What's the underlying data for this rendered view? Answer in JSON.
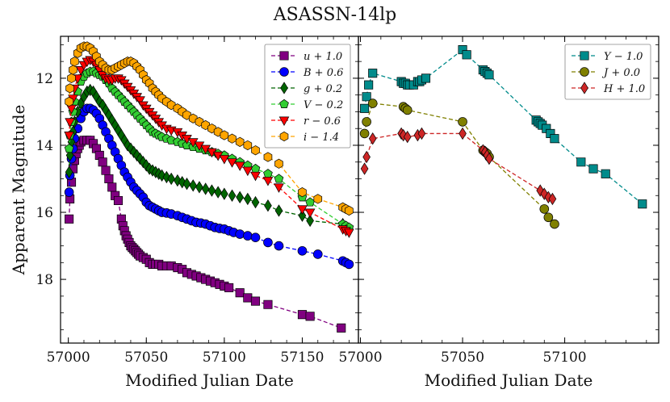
{
  "chart_data": {
    "type": "scatter",
    "title": "ASASSN-14lp",
    "ylabel": "Apparent Magnitude",
    "y_inverted": true,
    "ylim": [
      19.9,
      10.75
    ],
    "yticks": [
      12,
      14,
      16,
      18
    ],
    "panels": [
      {
        "name": "left",
        "xlabel": "Modified Julian Date",
        "xlim": [
          56995,
          57186
        ],
        "xticks": [
          57000,
          57050,
          57100,
          57150
        ],
        "legend_position": "top-right",
        "series": [
          {
            "name": "u+1.0",
            "label": "u + 1.0",
            "color": "#800080",
            "marker": "square",
            "x": [
              57000.5,
              57001,
              57002,
              57003,
              57004,
              57005,
              57006,
              57007,
              57008,
              57010,
              57012,
              57014,
              57016,
              57018,
              57020,
              57022,
              57024,
              57026,
              57028,
              57030,
              57032,
              57034,
              57035,
              57036,
              57037,
              57038,
              57039,
              57040,
              57041,
              57042,
              57043,
              57044,
              57045,
              57046,
              57048,
              57050,
              57052,
              57054,
              57056,
              57058,
              57060,
              57063,
              57066,
              57070,
              57073,
              57076,
              57079,
              57082,
              57085,
              57088,
              57091,
              57094,
              57097,
              57100,
              57103,
              57110,
              57115,
              57120,
              57128,
              57150,
              57155,
              57175
            ],
            "y": [
              16.2,
              15.6,
              15.1,
              14.7,
              14.45,
              14.25,
              14.1,
              14.0,
              13.9,
              13.85,
              13.85,
              13.85,
              13.95,
              14.1,
              14.3,
              14.5,
              14.75,
              15.0,
              15.25,
              15.5,
              15.65,
              16.2,
              16.4,
              16.55,
              16.7,
              16.8,
              16.9,
              17.0,
              17.05,
              17.1,
              17.15,
              17.2,
              17.25,
              17.3,
              17.35,
              17.4,
              17.5,
              17.55,
              17.55,
              17.55,
              17.6,
              17.6,
              17.6,
              17.65,
              17.7,
              17.8,
              17.85,
              17.9,
              17.95,
              18.0,
              18.05,
              18.1,
              18.15,
              18.2,
              18.25,
              18.4,
              18.55,
              18.65,
              18.75,
              19.05,
              19.1,
              19.45
            ]
          },
          {
            "name": "B+0.6",
            "label": "B + 0.6",
            "color": "#0000ff",
            "marker": "circle",
            "x": [
              57000.5,
              57001,
              57002,
              57003,
              57004,
              57006,
              57008,
              57010,
              57012,
              57014,
              57016,
              57018,
              57020,
              57022,
              57024,
              57026,
              57028,
              57030,
              57032,
              57034,
              57036,
              57038,
              57040,
              57042,
              57044,
              57046,
              57048,
              57050,
              57052,
              57054,
              57056,
              57058,
              57060,
              57063,
              57066,
              57070,
              57073,
              57076,
              57079,
              57082,
              57085,
              57088,
              57091,
              57094,
              57097,
              57100,
              57103,
              57106,
              57110,
              57115,
              57120,
              57128,
              57135,
              57150,
              57160,
              57176,
              57178,
              57180
            ],
            "y": [
              15.4,
              14.9,
              14.4,
              14.1,
              13.8,
              13.5,
              13.2,
              13.0,
              12.9,
              12.9,
              12.95,
              13.05,
              13.2,
              13.4,
              13.6,
              13.8,
              14.0,
              14.2,
              14.4,
              14.6,
              14.8,
              14.95,
              15.1,
              15.25,
              15.35,
              15.45,
              15.55,
              15.7,
              15.8,
              15.85,
              15.9,
              15.95,
              16.0,
              16.02,
              16.05,
              16.1,
              16.15,
              16.2,
              16.25,
              16.3,
              16.32,
              16.35,
              16.4,
              16.45,
              16.48,
              16.5,
              16.55,
              16.6,
              16.65,
              16.7,
              16.75,
              16.9,
              17.0,
              17.15,
              17.25,
              17.45,
              17.5,
              17.55
            ]
          },
          {
            "name": "g+0.2",
            "label": "g + 0.2",
            "color": "#006400",
            "marker": "diamond",
            "x": [
              57000.5,
              57001,
              57002,
              57003,
              57004,
              57006,
              57008,
              57010,
              57012,
              57014,
              57016,
              57018,
              57020,
              57022,
              57024,
              57026,
              57028,
              57030,
              57032,
              57034,
              57036,
              57038,
              57040,
              57042,
              57044,
              57046,
              57048,
              57050,
              57052,
              57054,
              57056,
              57058,
              57060,
              57063,
              57066,
              57070,
              57073,
              57076,
              57080,
              57084,
              57088,
              57092,
              57096,
              57100,
              57105,
              57110,
              57115,
              57120,
              57128,
              57135,
              57150,
              57155,
              57176,
              57178,
              57180
            ],
            "y": [
              14.8,
              14.3,
              13.9,
              13.6,
              13.3,
              13.0,
              12.75,
              12.55,
              12.4,
              12.35,
              12.4,
              12.55,
              12.7,
              12.8,
              12.95,
              13.1,
              13.25,
              13.4,
              13.55,
              13.7,
              13.85,
              14.0,
              14.1,
              14.2,
              14.3,
              14.4,
              14.5,
              14.6,
              14.7,
              14.75,
              14.8,
              14.85,
              14.9,
              14.95,
              15.0,
              15.05,
              15.1,
              15.15,
              15.2,
              15.25,
              15.3,
              15.35,
              15.4,
              15.45,
              15.5,
              15.55,
              15.6,
              15.7,
              15.8,
              15.95,
              16.1,
              16.25,
              16.35,
              16.45,
              16.5
            ]
          },
          {
            "name": "V-0.2",
            "label": "V − 0.2",
            "color": "#32cd32",
            "marker": "pentagon",
            "x": [
              57000.5,
              57001,
              57002,
              57003,
              57004,
              57006,
              57008,
              57010,
              57012,
              57014,
              57016,
              57018,
              57020,
              57022,
              57024,
              57026,
              57028,
              57030,
              57032,
              57034,
              57036,
              57038,
              57040,
              57042,
              57044,
              57046,
              57048,
              57050,
              57052,
              57054,
              57056,
              57058,
              57060,
              57063,
              57066,
              57070,
              57073,
              57076,
              57080,
              57084,
              57088,
              57092,
              57096,
              57100,
              57105,
              57110,
              57115,
              57120,
              57128,
              57135,
              57150,
              57155,
              57176,
              57178,
              57180
            ],
            "y": [
              14.1,
              13.7,
              13.3,
              13.0,
              12.7,
              12.4,
              12.1,
              11.95,
              11.85,
              11.8,
              11.8,
              11.85,
              11.9,
              11.95,
              12.05,
              12.15,
              12.3,
              12.4,
              12.5,
              12.6,
              12.7,
              12.8,
              12.9,
              13.0,
              13.1,
              13.2,
              13.3,
              13.4,
              13.5,
              13.6,
              13.65,
              13.7,
              13.75,
              13.8,
              13.85,
              13.9,
              13.95,
              14.0,
              14.05,
              14.1,
              14.15,
              14.2,
              14.25,
              14.3,
              14.4,
              14.5,
              14.6,
              14.7,
              14.85,
              15.0,
              15.55,
              15.7,
              16.35,
              16.4,
              16.45
            ]
          },
          {
            "name": "r-0.6",
            "label": "r − 0.6",
            "color": "#ff0000",
            "marker": "triangle-down",
            "x": [
              57000.5,
              57001,
              57002,
              57003,
              57004,
              57006,
              57008,
              57010,
              57012,
              57014,
              57016,
              57018,
              57020,
              57022,
              57024,
              57026,
              57028,
              57030,
              57032,
              57034,
              57036,
              57038,
              57040,
              57042,
              57044,
              57046,
              57048,
              57050,
              57052,
              57054,
              57056,
              57058,
              57060,
              57063,
              57066,
              57070,
              57073,
              57076,
              57080,
              57084,
              57088,
              57092,
              57096,
              57100,
              57105,
              57110,
              57115,
              57120,
              57128,
              57135,
              57150,
              57155,
              57176,
              57178,
              57180
            ],
            "y": [
              13.7,
              13.3,
              12.9,
              12.6,
              12.3,
              12.0,
              11.75,
              11.6,
              11.5,
              11.45,
              11.5,
              11.6,
              11.75,
              11.9,
              12.0,
              12.05,
              12.05,
              12.0,
              12.0,
              12.05,
              12.15,
              12.25,
              12.35,
              12.45,
              12.55,
              12.65,
              12.8,
              12.9,
              13.0,
              13.1,
              13.2,
              13.3,
              13.4,
              13.5,
              13.55,
              13.6,
              13.7,
              13.8,
              13.9,
              14.0,
              14.1,
              14.2,
              14.3,
              14.4,
              14.5,
              14.6,
              14.75,
              14.9,
              15.05,
              15.25,
              15.9,
              16.0,
              16.5,
              16.55,
              16.6
            ]
          },
          {
            "name": "i-1.4",
            "label": "i − 1.4",
            "color": "#ffa500",
            "marker": "hexagon",
            "x": [
              57000.5,
              57001,
              57002,
              57003,
              57004,
              57006,
              57008,
              57010,
              57012,
              57014,
              57016,
              57018,
              57020,
              57022,
              57024,
              57026,
              57028,
              57030,
              57032,
              57034,
              57036,
              57038,
              57040,
              57042,
              57044,
              57046,
              57048,
              57050,
              57052,
              57054,
              57056,
              57058,
              57060,
              57063,
              57066,
              57070,
              57073,
              57076,
              57080,
              57084,
              57088,
              57092,
              57096,
              57100,
              57105,
              57110,
              57115,
              57120,
              57128,
              57135,
              57150,
              57160,
              57176,
              57178,
              57180
            ],
            "y": [
              12.7,
              12.3,
              12.0,
              11.75,
              11.5,
              11.25,
              11.1,
              11.05,
              11.05,
              11.1,
              11.2,
              11.35,
              11.5,
              11.6,
              11.7,
              11.75,
              11.75,
              11.7,
              11.65,
              11.6,
              11.55,
              11.5,
              11.5,
              11.55,
              11.65,
              11.75,
              11.9,
              12.05,
              12.15,
              12.3,
              12.4,
              12.5,
              12.6,
              12.7,
              12.8,
              12.9,
              13.0,
              13.1,
              13.2,
              13.3,
              13.4,
              13.5,
              13.6,
              13.7,
              13.8,
              13.9,
              14.0,
              14.15,
              14.35,
              14.55,
              15.4,
              15.6,
              15.85,
              15.9,
              15.95
            ]
          }
        ]
      },
      {
        "name": "right",
        "xlabel": "Modified Julian Date",
        "xlim": [
          56999,
          57146
        ],
        "xticks": [
          57000,
          57050,
          57100
        ],
        "legend_position": "top-right",
        "series": [
          {
            "name": "Y-1.0",
            "label": "Y − 1.0",
            "color": "#008b8b",
            "marker": "square",
            "x": [
              57002,
              57003,
              57004,
              57006,
              57020,
              57021,
              57022,
              57023,
              57024,
              57026,
              57028,
              57029,
              57030,
              57032,
              57050,
              57052,
              57060,
              57061,
              57062,
              57063,
              57086,
              57087,
              57088,
              57089,
              57091,
              57093,
              57095,
              57108,
              57114,
              57120,
              57138
            ],
            "y": [
              12.9,
              12.55,
              12.2,
              11.85,
              12.1,
              12.15,
              12.15,
              12.2,
              12.2,
              12.2,
              12.1,
              12.1,
              12.05,
              12.0,
              11.15,
              11.3,
              11.75,
              11.8,
              11.85,
              11.9,
              13.25,
              13.3,
              13.35,
              13.4,
              13.5,
              13.65,
              13.8,
              14.5,
              14.7,
              14.85,
              15.75
            ]
          },
          {
            "name": "J+0.0",
            "label": "J + 0.0",
            "color": "#808000",
            "marker": "circle",
            "x": [
              57002,
              57003,
              57006,
              57021,
              57022,
              57023,
              57050,
              57060,
              57061,
              57062,
              57063,
              57090,
              57092,
              57095
            ],
            "y": [
              13.65,
              13.3,
              12.75,
              12.85,
              12.9,
              12.95,
              13.3,
              14.15,
              14.2,
              14.25,
              14.35,
              15.9,
              16.15,
              16.35
            ]
          },
          {
            "name": "H+1.0",
            "label": "H + 1.0",
            "color": "#cd2626",
            "marker": "diamond",
            "x": [
              57002,
              57003,
              57006,
              57020,
              57021,
              57023,
              57028,
              57030,
              57050,
              57060,
              57061,
              57062,
              57063,
              57088,
              57090,
              57092,
              57094
            ],
            "y": [
              14.7,
              14.35,
              13.8,
              13.65,
              13.7,
              13.75,
              13.7,
              13.65,
              13.65,
              14.15,
              14.2,
              14.3,
              14.4,
              15.35,
              15.45,
              15.55,
              15.6
            ]
          }
        ]
      }
    ]
  }
}
